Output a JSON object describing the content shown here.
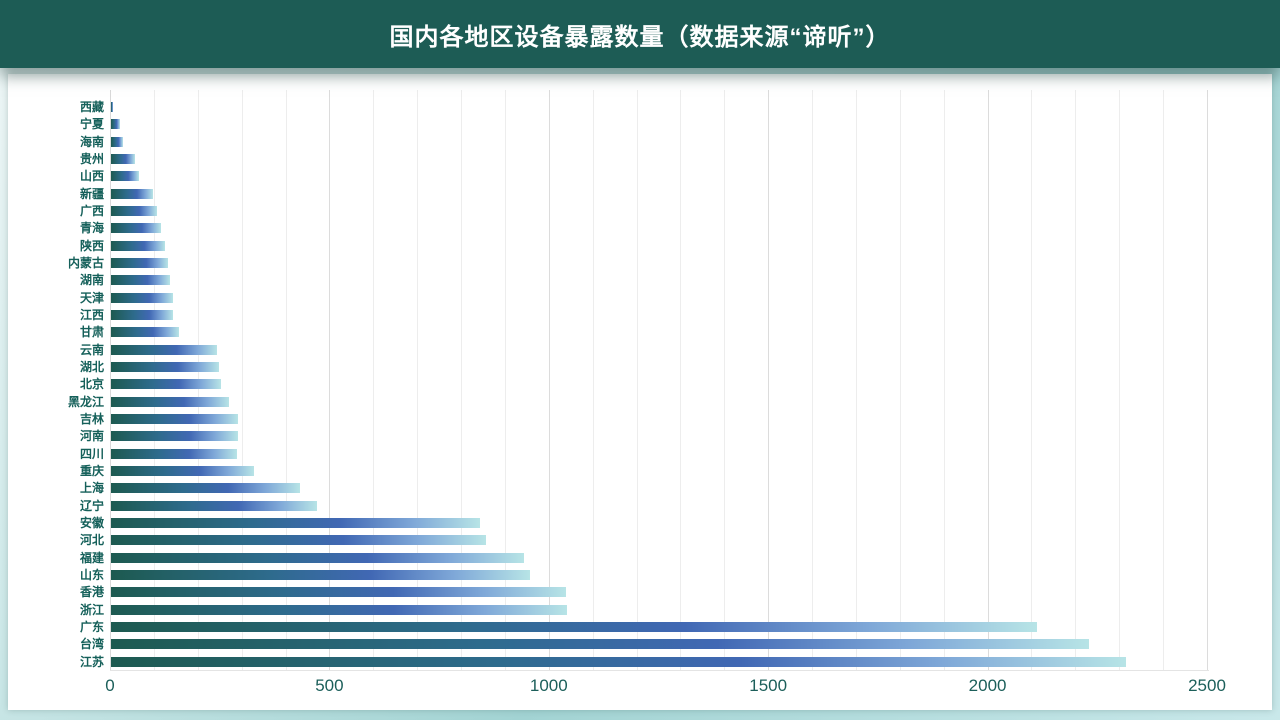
{
  "header": {
    "title": "国内各地区设备暴露数量（数据来源“谛听”）",
    "background": "#1d5c55",
    "text_color": "#ffffff"
  },
  "chart_data": {
    "type": "bar",
    "orientation": "horizontal",
    "title": "国内各地区设备暴露数量（数据来源“谛听”）",
    "xlabel": "",
    "ylabel": "",
    "categories": [
      "西藏",
      "宁夏",
      "海南",
      "贵州",
      "山西",
      "新疆",
      "广西",
      "青海",
      "陕西",
      "内蒙古",
      "湖南",
      "天津",
      "江西",
      "甘肃",
      "云南",
      "湖北",
      "北京",
      "黑龙江",
      "吉林",
      "河南",
      "四川",
      "重庆",
      "上海",
      "辽宁",
      "安徽",
      "河北",
      "福建",
      "山东",
      "香港",
      "浙江",
      "广东",
      "台湾",
      "江苏"
    ],
    "values": [
      4,
      20,
      28,
      54,
      64,
      96,
      104,
      113,
      122,
      130,
      134,
      141,
      142,
      155,
      242,
      245,
      250,
      268,
      289,
      290,
      288,
      325,
      430,
      470,
      841,
      855,
      941,
      955,
      1036,
      1040,
      2110,
      2228,
      2312
    ],
    "xlim": [
      0,
      2500
    ],
    "x_tick_labels": [
      "0",
      "500",
      "1000",
      "1500",
      "2000",
      "2500"
    ],
    "x_tick_step": 500,
    "minor_grid_step": 100,
    "grid": true,
    "legend": "none",
    "bar_gradient": [
      "#1d5a50",
      "#2e6b8d",
      "#4168b4",
      "#7fa8d8",
      "#b7e4e6"
    ],
    "label_color": "#15605a",
    "tick_color": "#1c5f5a"
  }
}
